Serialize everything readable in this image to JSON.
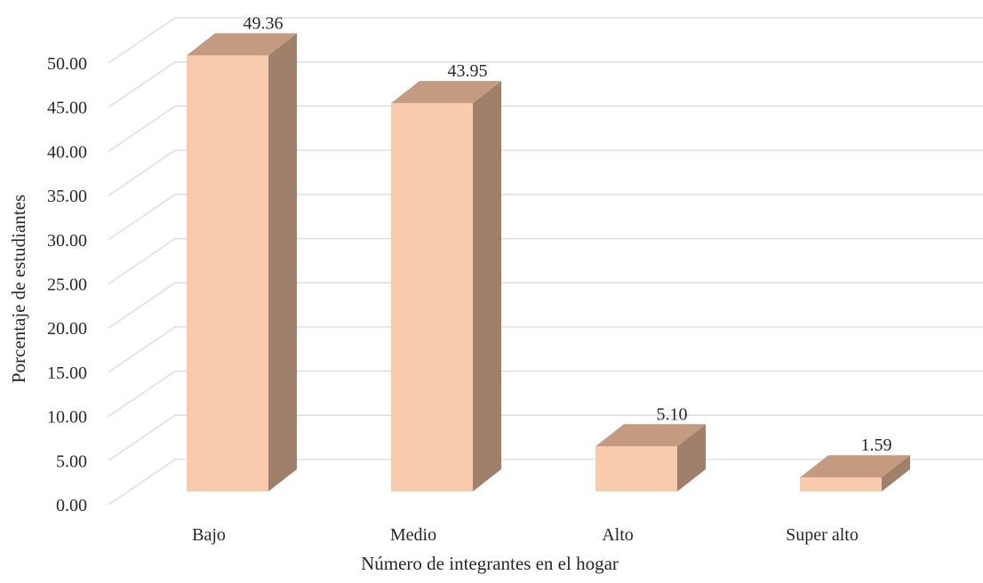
{
  "chart_data": {
    "type": "bar",
    "title": "",
    "xlabel": "Número de integrantes en el hogar",
    "ylabel": "Porcentaje de estudiantes",
    "categories": [
      "Bajo",
      "Medio",
      "Alto",
      "Super alto"
    ],
    "values": [
      49.36,
      43.95,
      5.1,
      1.59
    ],
    "value_labels": [
      "49.36",
      "43.95",
      "5.10",
      "1.59"
    ],
    "ylim": [
      0,
      50
    ],
    "yticks": [
      "0.00",
      "5.00",
      "10.00",
      "15.00",
      "20.00",
      "25.00",
      "30.00",
      "35.00",
      "40.00",
      "45.00",
      "50.00"
    ],
    "grid": true,
    "legend": "none",
    "style": "3d-column",
    "colors": {
      "bar_front": "#f8cbad",
      "bar_top": "#c49a80",
      "bar_side": "#a0806a",
      "grid": "#d9d9d9",
      "text": "#262626"
    }
  }
}
